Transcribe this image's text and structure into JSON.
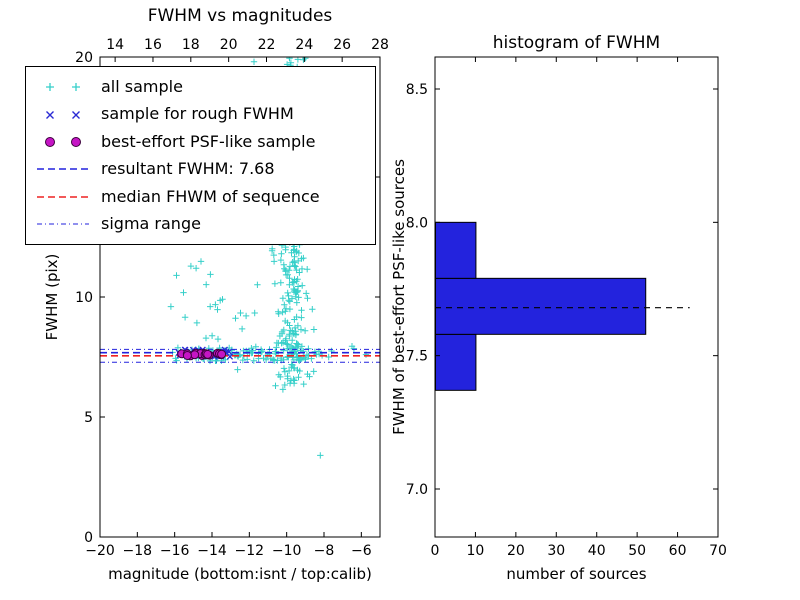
{
  "seed": 1337,
  "figure": {
    "background": "#ffffff"
  },
  "chart_data": [
    {
      "type": "scatter",
      "title": "FWHM vs magnitudes",
      "xlabel": "magnitude (bottom:isnt / top:calib)",
      "ylabel": "FWHM (pix)",
      "xlim": [
        -20,
        -5
      ],
      "ylim": [
        0,
        20
      ],
      "top_xlim": [
        13.2,
        28.0
      ],
      "x_ticks_bottom": {
        "values": [
          -20,
          -18,
          -16,
          -14,
          -12,
          -10,
          -8,
          -6
        ],
        "labels": [
          "−20",
          "−18",
          "−16",
          "−14",
          "−12",
          "−10",
          "−8",
          "−6"
        ]
      },
      "x_ticks_top": {
        "values": [
          14,
          16,
          18,
          20,
          22,
          24,
          26,
          28
        ],
        "labels": [
          "14",
          "16",
          "18",
          "20",
          "22",
          "24",
          "26",
          "28"
        ]
      },
      "y_ticks": {
        "values": [
          0,
          5,
          10,
          15,
          20
        ],
        "labels": [
          "0",
          "5",
          "10",
          "15",
          "20"
        ]
      },
      "hlines": [
        {
          "name": "sigma-upper",
          "y": 7.82,
          "color": "#2222dd",
          "dash": "5,3,1,3",
          "width": 1
        },
        {
          "name": "sigma-lower",
          "y": 7.28,
          "color": "#2222dd",
          "dash": "5,3,1,3",
          "width": 1
        },
        {
          "name": "resultant-fwhm",
          "y": 7.68,
          "color": "#2222dd",
          "dash": "7,4",
          "width": 1.6
        },
        {
          "name": "median-fwhm",
          "y": 7.55,
          "color": "#ee2222",
          "dash": "7,4",
          "width": 1.6
        }
      ],
      "resultant_fwhm": 7.68,
      "series": [
        {
          "name": "all sample",
          "marker": "plus",
          "color": "#35cfc9",
          "clusters": [
            {
              "kind": "uniform",
              "count": 115,
              "x": [
                -16.4,
                -8.0
              ],
              "y": [
                7.33,
                7.97
              ]
            },
            {
              "kind": "plume",
              "count": 150,
              "cx": -9.65,
              "sx": 0.33,
              "y": [
                6.1,
                20.0
              ]
            },
            {
              "kind": "plume",
              "count": 95,
              "cx": -9.7,
              "sx": 0.5,
              "y": [
                6.5,
                13.5
              ]
            },
            {
              "kind": "gauss",
              "count": 26,
              "cx": -13.6,
              "sx": 1.7,
              "cy": 9.6,
              "sy": 1.4
            }
          ],
          "points": [
            [
              -8.2,
              3.4
            ],
            [
              -6.4,
              7.85
            ],
            [
              -5.75,
              7.6
            ],
            [
              -6.5,
              7.95
            ],
            [
              -11.75,
              19.8
            ],
            [
              -12.3,
              19.3
            ],
            [
              -11.2,
              18.6
            ],
            [
              -15.9,
              10.9
            ],
            [
              -14.85,
              11.2
            ],
            [
              -16.2,
              9.6
            ],
            [
              -10.6,
              6.3
            ],
            [
              -10.2,
              6.15
            ],
            [
              -8.55,
              6.9
            ],
            [
              -7.75,
              7.5
            ],
            [
              -7.6,
              7.75
            ],
            [
              -9.0,
              19.95
            ],
            [
              -9.4,
              19.9
            ]
          ]
        },
        {
          "name": "sample for rough FWHM",
          "marker": "cross",
          "color": "#2a2ad4",
          "clusters": [
            {
              "kind": "uniform",
              "count": 26,
              "x": [
                -15.9,
                -13.0
              ],
              "y": [
                7.5,
                7.82
              ]
            }
          ],
          "points": []
        },
        {
          "name": "best-effort PSF-like sample",
          "marker": "circle",
          "color": "#c515c5",
          "edge": "#3c003c",
          "clusters": [
            {
              "kind": "uniform",
              "count": 18,
              "x": [
                -15.65,
                -13.35
              ],
              "y": [
                7.54,
                7.7
              ]
            }
          ],
          "points": []
        }
      ],
      "legend": {
        "items": [
          {
            "label": "all sample",
            "type": "scatter",
            "marker": "plus",
            "color": "#35cfc9"
          },
          {
            "label": "sample for rough FWHM",
            "type": "scatter",
            "marker": "cross",
            "color": "#2a2ad4"
          },
          {
            "label": "best-effort PSF-like sample",
            "type": "scatter",
            "marker": "circle",
            "color": "#c515c5",
            "edge": "#3c003c"
          },
          {
            "label": "resultant FWHM: 7.68",
            "type": "line",
            "color": "#2222dd",
            "dash": "7,4",
            "lw": 1.6
          },
          {
            "label": "median FHWM of sequence",
            "type": "line",
            "color": "#ee2222",
            "dash": "7,4",
            "lw": 1.6
          },
          {
            "label": "sigma range",
            "type": "line",
            "color": "#2222dd",
            "dash": "5,3,1,3",
            "lw": 1
          }
        ]
      }
    },
    {
      "type": "bar-horizontal",
      "title": "histogram of FWHM",
      "xlabel": "number of sources",
      "ylabel": "FWHM of best-effort PSF-like sources",
      "xlim": [
        0,
        70
      ],
      "ylim": [
        6.82,
        8.62
      ],
      "x_ticks": {
        "values": [
          0,
          10,
          20,
          30,
          40,
          50,
          60,
          70
        ],
        "labels": [
          "0",
          "10",
          "20",
          "30",
          "40",
          "50",
          "60",
          "70"
        ]
      },
      "y_ticks": {
        "values": [
          7.0,
          7.5,
          8.0,
          8.5
        ],
        "labels": [
          "7.0",
          "7.5",
          "8.0",
          "8.5"
        ]
      },
      "bar_color": "#2323dd",
      "bins": [
        {
          "from": 7.37,
          "to": 7.58,
          "count": 10
        },
        {
          "from": 7.58,
          "to": 7.79,
          "count": 52
        },
        {
          "from": 7.79,
          "to": 8.0,
          "count": 10
        }
      ],
      "dashed_line": {
        "y": 7.68,
        "x_end": 63,
        "color": "#000000"
      }
    }
  ]
}
